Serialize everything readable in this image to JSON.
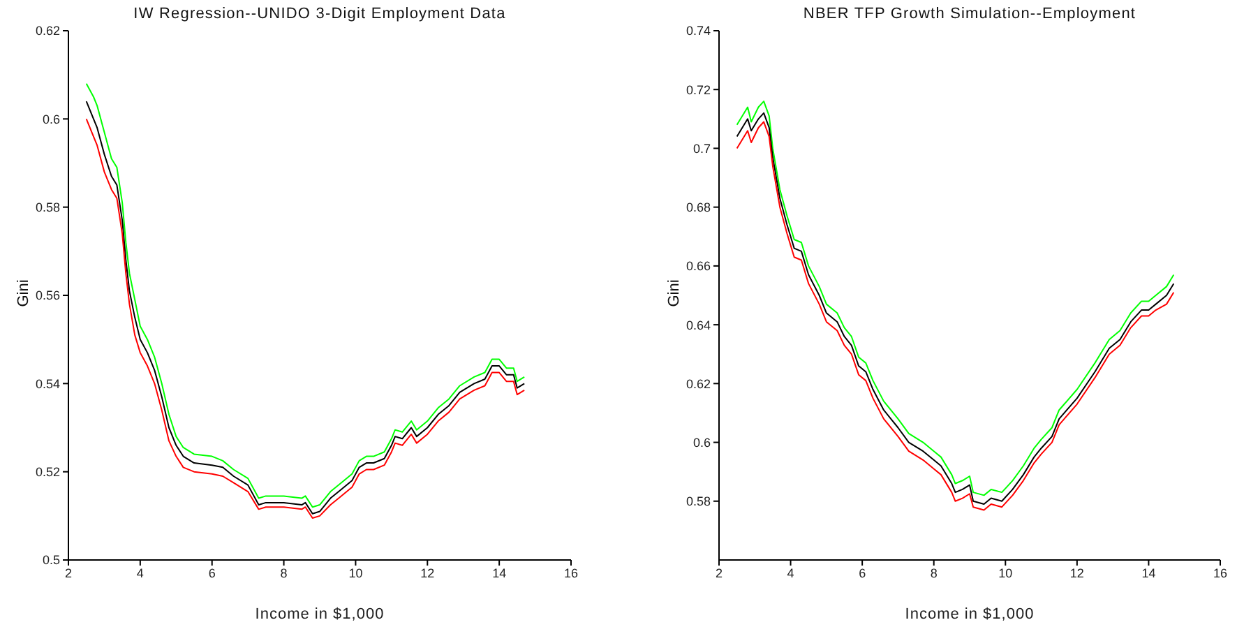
{
  "chart_data": [
    {
      "type": "line",
      "title": "IW Regression--UNIDO 3-Digit Employment Data",
      "xlabel": "Income in $1,000",
      "ylabel": "Gini",
      "x": [
        2.5,
        2.7,
        2.8,
        3.0,
        3.2,
        3.35,
        3.5,
        3.6,
        3.7,
        3.85,
        4.0,
        4.2,
        4.4,
        4.6,
        4.8,
        5.0,
        5.2,
        5.5,
        6.0,
        6.3,
        6.6,
        7.0,
        7.3,
        7.5,
        8.0,
        8.5,
        8.6,
        8.8,
        9.0,
        9.3,
        9.6,
        9.9,
        10.1,
        10.3,
        10.5,
        10.8,
        11.0,
        11.1,
        11.3,
        11.55,
        11.7,
        12.0,
        12.3,
        12.6,
        12.9,
        13.3,
        13.6,
        13.8,
        14.0,
        14.2,
        14.4,
        14.5,
        14.7
      ],
      "series": [
        {
          "color": "#00ff00",
          "values": [
            0.608,
            0.605,
            0.603,
            0.597,
            0.591,
            0.589,
            0.581,
            0.572,
            0.565,
            0.559,
            0.553,
            0.55,
            0.546,
            0.54,
            0.533,
            0.528,
            0.5255,
            0.524,
            0.5235,
            0.5225,
            0.5205,
            0.5185,
            0.514,
            0.5145,
            0.5145,
            0.514,
            0.5145,
            0.512,
            0.5125,
            0.5155,
            0.5175,
            0.5195,
            0.5225,
            0.5235,
            0.5235,
            0.5245,
            0.5275,
            0.5295,
            0.529,
            0.5315,
            0.5295,
            0.5315,
            0.5345,
            0.5365,
            0.5395,
            0.5415,
            0.5425,
            0.5455,
            0.5455,
            0.5435,
            0.5435,
            0.5405,
            0.5415
          ]
        },
        {
          "color": "#000000",
          "values": [
            0.604,
            0.6,
            0.598,
            0.592,
            0.587,
            0.585,
            0.577,
            0.568,
            0.561,
            0.555,
            0.55,
            0.547,
            0.543,
            0.537,
            0.53,
            0.526,
            0.5235,
            0.522,
            0.5215,
            0.521,
            0.519,
            0.517,
            0.5125,
            0.513,
            0.513,
            0.5125,
            0.513,
            0.5105,
            0.511,
            0.514,
            0.516,
            0.518,
            0.521,
            0.522,
            0.522,
            0.523,
            0.526,
            0.528,
            0.5275,
            0.53,
            0.528,
            0.53,
            0.533,
            0.535,
            0.538,
            0.54,
            0.541,
            0.544,
            0.544,
            0.542,
            0.542,
            0.539,
            0.54
          ]
        },
        {
          "color": "#ff0000",
          "values": [
            0.6,
            0.596,
            0.594,
            0.588,
            0.584,
            0.582,
            0.574,
            0.565,
            0.558,
            0.551,
            0.547,
            0.544,
            0.54,
            0.534,
            0.527,
            0.5235,
            0.521,
            0.52,
            0.5195,
            0.519,
            0.5175,
            0.5155,
            0.5115,
            0.512,
            0.512,
            0.5115,
            0.512,
            0.5095,
            0.51,
            0.5125,
            0.5145,
            0.5165,
            0.5195,
            0.5205,
            0.5205,
            0.5215,
            0.5245,
            0.5265,
            0.526,
            0.5285,
            0.5265,
            0.5285,
            0.5315,
            0.5335,
            0.5365,
            0.5385,
            0.5395,
            0.5425,
            0.5425,
            0.5405,
            0.5405,
            0.5375,
            0.5385
          ]
        }
      ],
      "xlim": [
        2,
        16
      ],
      "xticks": [
        2,
        4,
        6,
        8,
        10,
        12,
        14,
        16
      ],
      "ylim": [
        0.5,
        0.62
      ],
      "yticks": [
        0.5,
        0.52,
        0.54,
        0.56,
        0.58,
        0.6,
        0.62
      ]
    },
    {
      "type": "line",
      "title": "NBER TFP Growth Simulation--Employment",
      "xlabel": "Income in $1,000",
      "ylabel": "Gini",
      "x": [
        2.5,
        2.8,
        2.9,
        3.1,
        3.25,
        3.4,
        3.5,
        3.7,
        3.9,
        4.0,
        4.1,
        4.3,
        4.5,
        4.8,
        5.0,
        5.3,
        5.5,
        5.7,
        5.9,
        6.1,
        6.3,
        6.6,
        7.0,
        7.3,
        7.7,
        8.0,
        8.2,
        8.5,
        8.6,
        8.8,
        9.0,
        9.1,
        9.4,
        9.6,
        9.9,
        10.2,
        10.5,
        10.8,
        11.0,
        11.3,
        11.5,
        12.0,
        12.5,
        12.9,
        13.2,
        13.5,
        13.8,
        14.0,
        14.2,
        14.5,
        14.7
      ],
      "series": [
        {
          "color": "#00ff00",
          "values": [
            0.708,
            0.714,
            0.709,
            0.714,
            0.716,
            0.711,
            0.7,
            0.686,
            0.677,
            0.673,
            0.669,
            0.668,
            0.66,
            0.653,
            0.647,
            0.644,
            0.639,
            0.636,
            0.629,
            0.627,
            0.621,
            0.614,
            0.608,
            0.603,
            0.6,
            0.597,
            0.595,
            0.589,
            0.586,
            0.587,
            0.5885,
            0.583,
            0.582,
            0.584,
            0.583,
            0.587,
            0.592,
            0.598,
            0.601,
            0.605,
            0.611,
            0.618,
            0.627,
            0.635,
            0.638,
            0.644,
            0.648,
            0.648,
            0.65,
            0.653,
            0.657
          ]
        },
        {
          "color": "#000000",
          "values": [
            0.704,
            0.71,
            0.706,
            0.71,
            0.712,
            0.707,
            0.697,
            0.683,
            0.674,
            0.67,
            0.666,
            0.665,
            0.657,
            0.65,
            0.644,
            0.641,
            0.636,
            0.633,
            0.626,
            0.624,
            0.618,
            0.611,
            0.605,
            0.6,
            0.597,
            0.594,
            0.592,
            0.586,
            0.583,
            0.584,
            0.5855,
            0.58,
            0.579,
            0.581,
            0.58,
            0.584,
            0.589,
            0.595,
            0.598,
            0.602,
            0.608,
            0.615,
            0.624,
            0.632,
            0.635,
            0.641,
            0.645,
            0.645,
            0.647,
            0.65,
            0.654
          ]
        },
        {
          "color": "#ff0000",
          "values": [
            0.7,
            0.706,
            0.702,
            0.707,
            0.709,
            0.704,
            0.694,
            0.68,
            0.671,
            0.667,
            0.663,
            0.662,
            0.654,
            0.647,
            0.641,
            0.638,
            0.633,
            0.63,
            0.623,
            0.621,
            0.615,
            0.608,
            0.602,
            0.597,
            0.594,
            0.591,
            0.589,
            0.583,
            0.58,
            0.581,
            0.5825,
            0.578,
            0.577,
            0.579,
            0.578,
            0.582,
            0.587,
            0.593,
            0.596,
            0.6,
            0.606,
            0.613,
            0.622,
            0.63,
            0.633,
            0.639,
            0.643,
            0.643,
            0.645,
            0.647,
            0.651
          ]
        }
      ],
      "xlim": [
        2,
        16
      ],
      "xticks": [
        2,
        4,
        6,
        8,
        10,
        12,
        14,
        16
      ],
      "ylim": [
        0.56,
        0.74
      ],
      "yticks": [
        0.58,
        0.6,
        0.62,
        0.64,
        0.66,
        0.68,
        0.7,
        0.72,
        0.74
      ]
    }
  ]
}
